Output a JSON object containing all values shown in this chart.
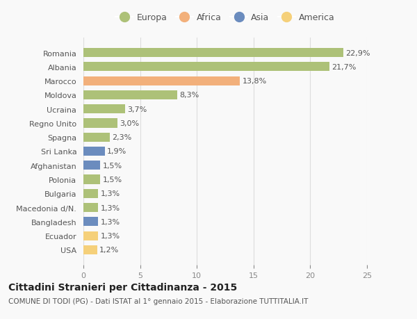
{
  "categories": [
    "Romania",
    "Albania",
    "Marocco",
    "Moldova",
    "Ucraina",
    "Regno Unito",
    "Spagna",
    "Sri Lanka",
    "Afghanistan",
    "Polonia",
    "Bulgaria",
    "Macedonia d/N.",
    "Bangladesh",
    "Ecuador",
    "USA"
  ],
  "values": [
    22.9,
    21.7,
    13.8,
    8.3,
    3.7,
    3.0,
    2.3,
    1.9,
    1.5,
    1.5,
    1.3,
    1.3,
    1.3,
    1.3,
    1.2
  ],
  "labels": [
    "22,9%",
    "21,7%",
    "13,8%",
    "8,3%",
    "3,7%",
    "3,0%",
    "2,3%",
    "1,9%",
    "1,5%",
    "1,5%",
    "1,3%",
    "1,3%",
    "1,3%",
    "1,3%",
    "1,2%"
  ],
  "continents": [
    "Europa",
    "Europa",
    "Africa",
    "Europa",
    "Europa",
    "Europa",
    "Europa",
    "Asia",
    "Asia",
    "Europa",
    "Europa",
    "Europa",
    "Asia",
    "America",
    "America"
  ],
  "colors": {
    "Africa": "#f2b07b",
    "Asia": "#6b8cbe",
    "America": "#f5d07a"
  },
  "colors2": {
    "Europa": "#adc178",
    "Africa": "#f2b07b",
    "Asia": "#6b8cbe",
    "America": "#f5d07a"
  },
  "xlim": [
    0,
    25
  ],
  "xticks": [
    0,
    5,
    10,
    15,
    20,
    25
  ],
  "title": "Cittadini Stranieri per Cittadinanza - 2015",
  "subtitle": "COMUNE DI TODI (PG) - Dati ISTAT al 1° gennaio 2015 - Elaborazione TUTTITALIA.IT",
  "background_color": "#f9f9f9",
  "grid_color": "#dddddd",
  "bar_height": 0.65,
  "title_fontsize": 10,
  "subtitle_fontsize": 7.5,
  "label_fontsize": 8,
  "tick_fontsize": 8,
  "legend_fontsize": 9,
  "legend_order": [
    "Europa",
    "Africa",
    "Asia",
    "America"
  ],
  "legend_colors": {
    "Europa": "#adc178",
    "Africa": "#f2b07b",
    "Asia": "#6b8cbe",
    "America": "#f5d07a"
  }
}
